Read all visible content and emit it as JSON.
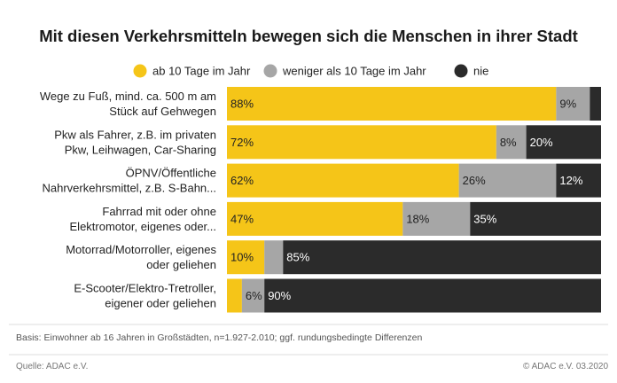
{
  "chart_data": {
    "type": "bar",
    "orientation": "horizontal",
    "stacked": true,
    "title": "Mit diesen Verkehrsmitteln bewegen sich die Menschen in ihrer Stadt",
    "xlim": [
      0,
      100
    ],
    "grid": false,
    "legend_position": "top",
    "categories": [
      [
        "Wege zu Fuß, mind. ca. 500 m am",
        "Stück auf Gehwegen"
      ],
      [
        "Pkw als Fahrer, z.B. im privaten",
        "Pkw, Leihwagen, Car-Sharing"
      ],
      [
        "ÖPNV/Öffentliche",
        "Nahrverkehrsmittel, z.B. S-Bahn..."
      ],
      [
        "Fahrrad mit oder ohne",
        "Elektromotor, eigenes oder..."
      ],
      [
        "Motorrad/Motorroller, eigenes",
        "oder geliehen"
      ],
      [
        "E-Scooter/Elektro-Tretroller,",
        "eigener oder geliehen"
      ]
    ],
    "series": [
      {
        "name": "ab 10 Tage im Jahr",
        "color": "#F5C518",
        "values": [
          88,
          72,
          62,
          47,
          10,
          4
        ],
        "labels": [
          "88%",
          "72%",
          "62%",
          "47%",
          "10%",
          ""
        ]
      },
      {
        "name": "weniger als 10 Tage im Jahr",
        "color": "#A6A6A6",
        "values": [
          9,
          8,
          26,
          18,
          5,
          6
        ],
        "labels": [
          "9%",
          "8%",
          "26%",
          "18%",
          "",
          "6%"
        ]
      },
      {
        "name": "nie",
        "color": "#2B2B2B",
        "values": [
          3,
          20,
          12,
          35,
          85,
          90
        ],
        "labels": [
          "",
          "20%",
          "12%",
          "35%",
          "85%",
          "90%"
        ]
      }
    ]
  },
  "note": "Basis: Einwohner ab 16 Jahren in Großstädten, n=1.927-2.010; ggf. rundungsbedingte Differenzen",
  "footer": {
    "source": "Quelle: ADAC e.V.",
    "copyright": "© ADAC e.V.  03.2020"
  }
}
